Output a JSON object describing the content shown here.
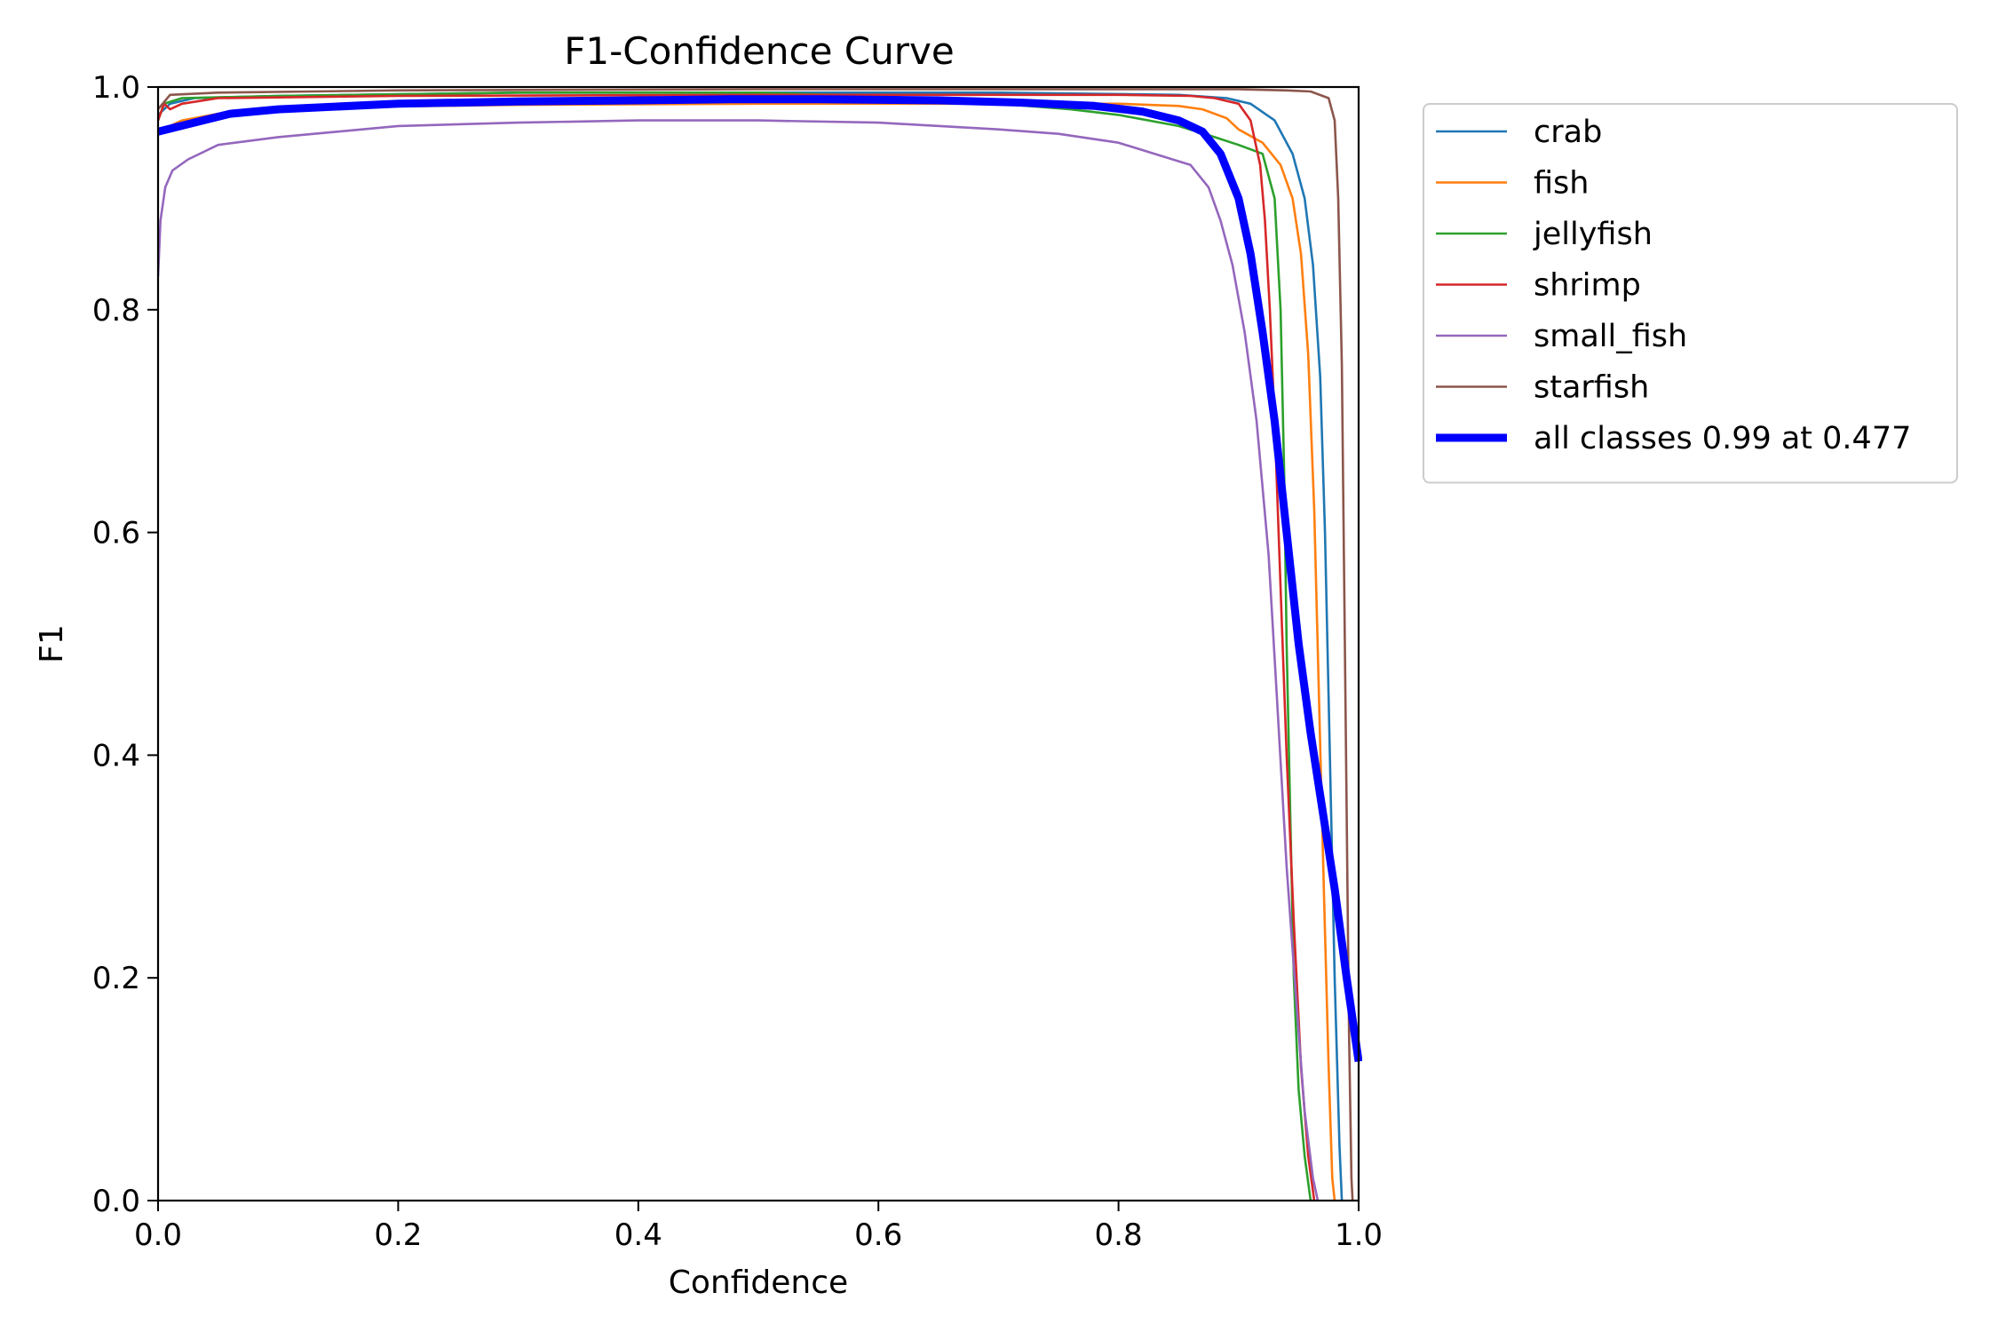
{
  "chart_data": {
    "type": "line",
    "title": "F1-Confidence Curve",
    "xlabel": "Confidence",
    "ylabel": "F1",
    "xlim": [
      0,
      1
    ],
    "ylim": [
      0,
      1
    ],
    "xticks": [
      "0.0",
      "0.2",
      "0.4",
      "0.6",
      "0.8",
      "1.0"
    ],
    "yticks": [
      "0.0",
      "0.2",
      "0.4",
      "0.6",
      "0.8",
      "1.0"
    ],
    "grid": false,
    "legend_position": "outside-top-right",
    "series": [
      {
        "name": "crab",
        "color": "#1f77b4",
        "width": "thin",
        "points": [
          [
            0,
            0.975
          ],
          [
            0.01,
            0.985
          ],
          [
            0.03,
            0.99
          ],
          [
            0.1,
            0.992
          ],
          [
            0.3,
            0.995
          ],
          [
            0.5,
            0.995
          ],
          [
            0.7,
            0.995
          ],
          [
            0.85,
            0.993
          ],
          [
            0.89,
            0.99
          ],
          [
            0.91,
            0.985
          ],
          [
            0.93,
            0.97
          ],
          [
            0.945,
            0.94
          ],
          [
            0.955,
            0.9
          ],
          [
            0.962,
            0.84
          ],
          [
            0.968,
            0.74
          ],
          [
            0.972,
            0.6
          ],
          [
            0.976,
            0.4
          ],
          [
            0.98,
            0.2
          ],
          [
            0.984,
            0.05
          ],
          [
            0.986,
            0
          ]
        ]
      },
      {
        "name": "fish",
        "color": "#ff7f0e",
        "width": "thin",
        "points": [
          [
            0,
            0.96
          ],
          [
            0.02,
            0.97
          ],
          [
            0.06,
            0.978
          ],
          [
            0.15,
            0.982
          ],
          [
            0.3,
            0.984
          ],
          [
            0.5,
            0.985
          ],
          [
            0.7,
            0.985
          ],
          [
            0.8,
            0.985
          ],
          [
            0.85,
            0.983
          ],
          [
            0.87,
            0.98
          ],
          [
            0.89,
            0.972
          ],
          [
            0.9,
            0.962
          ],
          [
            0.92,
            0.95
          ],
          [
            0.935,
            0.93
          ],
          [
            0.945,
            0.9
          ],
          [
            0.952,
            0.85
          ],
          [
            0.958,
            0.76
          ],
          [
            0.963,
            0.62
          ],
          [
            0.967,
            0.45
          ],
          [
            0.971,
            0.28
          ],
          [
            0.975,
            0.12
          ],
          [
            0.978,
            0.02
          ],
          [
            0.98,
            0
          ]
        ]
      },
      {
        "name": "jellyfish",
        "color": "#2ca02c",
        "width": "thin",
        "points": [
          [
            0,
            0.97
          ],
          [
            0.005,
            0.985
          ],
          [
            0.02,
            0.99
          ],
          [
            0.1,
            0.992
          ],
          [
            0.3,
            0.995
          ],
          [
            0.5,
            0.995
          ],
          [
            0.6,
            0.992
          ],
          [
            0.7,
            0.985
          ],
          [
            0.76,
            0.98
          ],
          [
            0.8,
            0.975
          ],
          [
            0.85,
            0.965
          ],
          [
            0.88,
            0.955
          ],
          [
            0.9,
            0.948
          ],
          [
            0.92,
            0.94
          ],
          [
            0.93,
            0.9
          ],
          [
            0.935,
            0.8
          ],
          [
            0.938,
            0.65
          ],
          [
            0.94,
            0.5
          ],
          [
            0.943,
            0.35
          ],
          [
            0.946,
            0.2
          ],
          [
            0.95,
            0.1
          ],
          [
            0.955,
            0.04
          ],
          [
            0.96,
            0
          ]
        ]
      },
      {
        "name": "shrimp",
        "color": "#d62728",
        "width": "thin",
        "points": [
          [
            0,
            0.97
          ],
          [
            0.005,
            0.985
          ],
          [
            0.01,
            0.98
          ],
          [
            0.02,
            0.985
          ],
          [
            0.05,
            0.99
          ],
          [
            0.2,
            0.992
          ],
          [
            0.5,
            0.993
          ],
          [
            0.7,
            0.993
          ],
          [
            0.8,
            0.993
          ],
          [
            0.86,
            0.992
          ],
          [
            0.88,
            0.99
          ],
          [
            0.9,
            0.985
          ],
          [
            0.91,
            0.97
          ],
          [
            0.918,
            0.93
          ],
          [
            0.922,
            0.88
          ],
          [
            0.926,
            0.8
          ],
          [
            0.93,
            0.7
          ],
          [
            0.935,
            0.55
          ],
          [
            0.94,
            0.4
          ],
          [
            0.946,
            0.25
          ],
          [
            0.952,
            0.12
          ],
          [
            0.958,
            0.04
          ],
          [
            0.963,
            0
          ]
        ]
      },
      {
        "name": "small_fish",
        "color": "#9467bd",
        "width": "thin",
        "points": [
          [
            0,
            0.83
          ],
          [
            0.002,
            0.88
          ],
          [
            0.006,
            0.91
          ],
          [
            0.012,
            0.925
          ],
          [
            0.025,
            0.935
          ],
          [
            0.05,
            0.948
          ],
          [
            0.1,
            0.955
          ],
          [
            0.15,
            0.96
          ],
          [
            0.2,
            0.965
          ],
          [
            0.3,
            0.968
          ],
          [
            0.4,
            0.97
          ],
          [
            0.5,
            0.97
          ],
          [
            0.6,
            0.968
          ],
          [
            0.7,
            0.962
          ],
          [
            0.75,
            0.958
          ],
          [
            0.8,
            0.95
          ],
          [
            0.83,
            0.94
          ],
          [
            0.86,
            0.93
          ],
          [
            0.875,
            0.91
          ],
          [
            0.885,
            0.88
          ],
          [
            0.895,
            0.84
          ],
          [
            0.905,
            0.78
          ],
          [
            0.915,
            0.7
          ],
          [
            0.925,
            0.58
          ],
          [
            0.932,
            0.45
          ],
          [
            0.94,
            0.3
          ],
          [
            0.948,
            0.18
          ],
          [
            0.955,
            0.08
          ],
          [
            0.962,
            0.02
          ],
          [
            0.966,
            0
          ]
        ]
      },
      {
        "name": "starfish",
        "color": "#8c564b",
        "width": "thin",
        "points": [
          [
            0,
            0.98
          ],
          [
            0.01,
            0.993
          ],
          [
            0.05,
            0.995
          ],
          [
            0.2,
            0.997
          ],
          [
            0.5,
            0.998
          ],
          [
            0.7,
            0.998
          ],
          [
            0.9,
            0.998
          ],
          [
            0.94,
            0.997
          ],
          [
            0.96,
            0.996
          ],
          [
            0.975,
            0.99
          ],
          [
            0.98,
            0.97
          ],
          [
            0.983,
            0.9
          ],
          [
            0.986,
            0.75
          ],
          [
            0.988,
            0.55
          ],
          [
            0.99,
            0.35
          ],
          [
            0.992,
            0.15
          ],
          [
            0.994,
            0.02
          ],
          [
            0.995,
            0
          ]
        ]
      },
      {
        "name": "all classes 0.99 at 0.477",
        "color": "#0000ff",
        "width": "thick",
        "points": [
          [
            0,
            0.96
          ],
          [
            0.03,
            0.968
          ],
          [
            0.06,
            0.976
          ],
          [
            0.1,
            0.98
          ],
          [
            0.2,
            0.985
          ],
          [
            0.3,
            0.987
          ],
          [
            0.4,
            0.988
          ],
          [
            0.477,
            0.989
          ],
          [
            0.55,
            0.989
          ],
          [
            0.65,
            0.988
          ],
          [
            0.72,
            0.986
          ],
          [
            0.78,
            0.983
          ],
          [
            0.82,
            0.978
          ],
          [
            0.85,
            0.97
          ],
          [
            0.87,
            0.96
          ],
          [
            0.885,
            0.94
          ],
          [
            0.9,
            0.9
          ],
          [
            0.91,
            0.85
          ],
          [
            0.92,
            0.78
          ],
          [
            0.93,
            0.7
          ],
          [
            0.94,
            0.6
          ],
          [
            0.95,
            0.5
          ],
          [
            0.96,
            0.42
          ],
          [
            0.97,
            0.35
          ],
          [
            0.98,
            0.28
          ],
          [
            0.99,
            0.2
          ],
          [
            1.0,
            0.125
          ]
        ]
      }
    ]
  }
}
